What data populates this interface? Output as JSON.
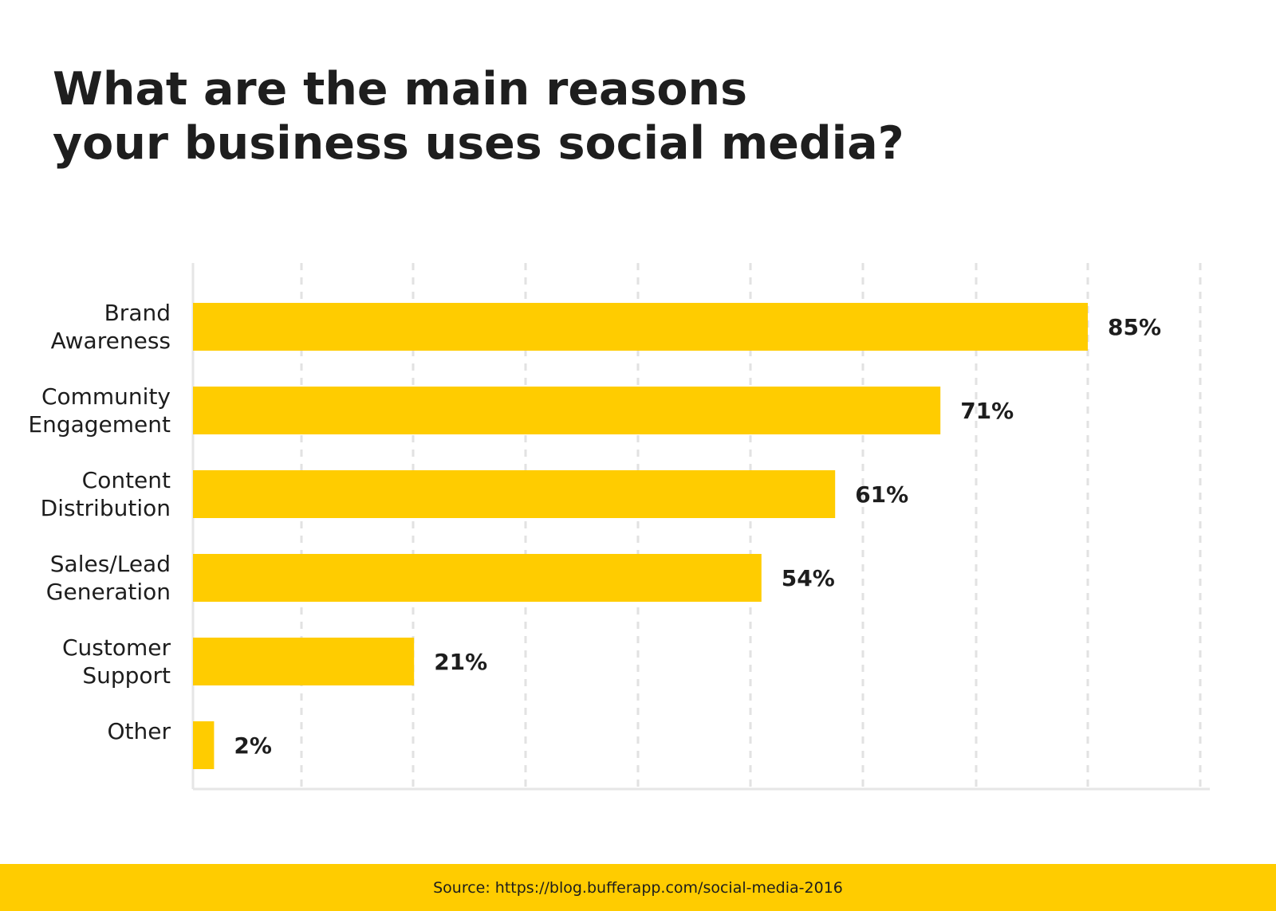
{
  "chart_data": {
    "type": "bar",
    "orientation": "horizontal",
    "title_lines": [
      "What are the main reasons",
      "your business uses social media?"
    ],
    "categories": [
      [
        "Brand",
        "Awareness"
      ],
      [
        "Community",
        "Engagement"
      ],
      [
        "Content",
        "Distribution"
      ],
      [
        "Sales/Lead",
        "Generation"
      ],
      [
        "Customer",
        "Support"
      ],
      [
        "Other"
      ]
    ],
    "values": [
      85,
      71,
      61,
      54,
      21,
      2
    ],
    "value_labels": [
      "85%",
      "71%",
      "61%",
      "54%",
      "21%",
      "2%"
    ],
    "xlabel": "",
    "ylabel": "",
    "grid": true,
    "bar_color": "#FFCC00"
  },
  "footer": {
    "source": "Source: https://blog.bufferapp.com/social-media-2016"
  }
}
